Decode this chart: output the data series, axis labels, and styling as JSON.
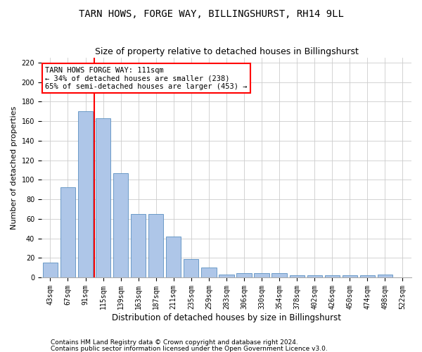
{
  "title": "TARN HOWS, FORGE WAY, BILLINGSHURST, RH14 9LL",
  "subtitle": "Size of property relative to detached houses in Billingshurst",
  "xlabel": "Distribution of detached houses by size in Billingshurst",
  "ylabel": "Number of detached properties",
  "footnote1": "Contains HM Land Registry data © Crown copyright and database right 2024.",
  "footnote2": "Contains public sector information licensed under the Open Government Licence v3.0.",
  "bar_labels": [
    "43sqm",
    "67sqm",
    "91sqm",
    "115sqm",
    "139sqm",
    "163sqm",
    "187sqm",
    "211sqm",
    "235sqm",
    "259sqm",
    "283sqm",
    "306sqm",
    "330sqm",
    "354sqm",
    "378sqm",
    "402sqm",
    "426sqm",
    "450sqm",
    "474sqm",
    "498sqm",
    "522sqm"
  ],
  "bar_values": [
    15,
    92,
    170,
    163,
    107,
    65,
    65,
    42,
    19,
    10,
    3,
    4,
    4,
    4,
    2,
    2,
    2,
    2,
    2,
    3,
    0
  ],
  "bar_color": "#aec6e8",
  "bar_edge_color": "#5a8fc0",
  "vline_color": "red",
  "annotation_text": "TARN HOWS FORGE WAY: 111sqm\n← 34% of detached houses are smaller (238)\n65% of semi-detached houses are larger (453) →",
  "annotation_box_color": "white",
  "annotation_box_edge_color": "red",
  "ylim": [
    0,
    225
  ],
  "yticks": [
    0,
    20,
    40,
    60,
    80,
    100,
    120,
    140,
    160,
    180,
    200,
    220
  ],
  "title_fontsize": 10,
  "subtitle_fontsize": 9,
  "xlabel_fontsize": 8.5,
  "ylabel_fontsize": 8,
  "tick_fontsize": 7,
  "annotation_fontsize": 7.5,
  "footnote_fontsize": 6.5
}
